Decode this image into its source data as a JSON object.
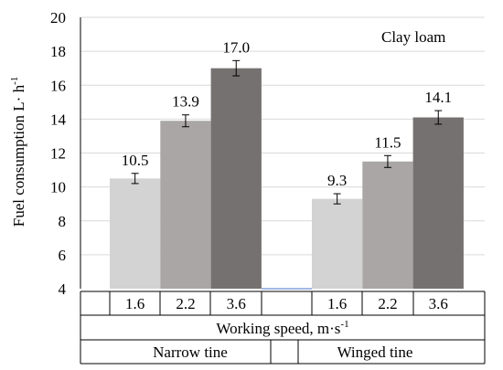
{
  "chart_data": {
    "type": "bar",
    "ylabel": "Fuel consumption  L· h",
    "ylabel_sup": "-1",
    "annotation": "Clay loam",
    "ylim": [
      4,
      20
    ],
    "yticks": [
      "4",
      "6",
      "8",
      "10",
      "12",
      "14",
      "16",
      "18",
      "20"
    ],
    "grid": true,
    "xaxis_title": "Working speed, m·s",
    "xaxis_title_sup": "-1",
    "groups": [
      {
        "name": "Narrow tine",
        "categories": [
          "1.6",
          "2.2",
          "3.6"
        ],
        "values": [
          10.5,
          13.9,
          17.0
        ],
        "labels": [
          "10.5",
          "13.9",
          "17.0"
        ],
        "errors": [
          0.3,
          0.35,
          0.45
        ]
      },
      {
        "name": "Winged tine",
        "categories": [
          "1.6",
          "2.2",
          "3.6"
        ],
        "values": [
          9.3,
          11.5,
          14.1
        ],
        "labels": [
          "9.3",
          "11.5",
          "14.1"
        ],
        "errors": [
          0.3,
          0.35,
          0.4
        ]
      }
    ],
    "colors": [
      "#d4d3d3",
      "#a9a6a5",
      "#757170"
    ]
  }
}
